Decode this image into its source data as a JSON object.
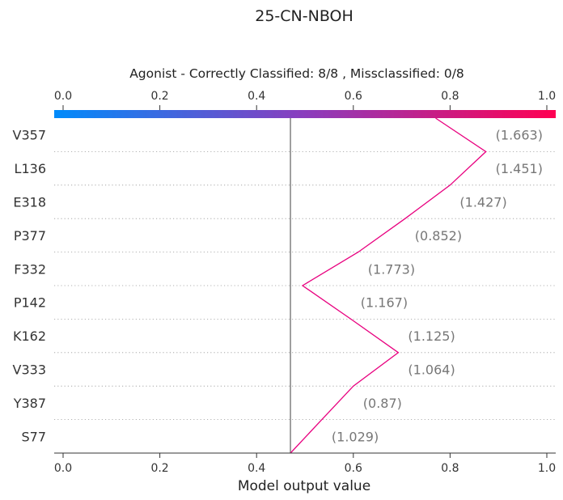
{
  "chart_data": {
    "type": "line",
    "title": "25-CN-NBOH",
    "subtitle": "Agonist - Correctly Classified: 8/8 , Missclassified: 0/8",
    "xlabel": "Model output value",
    "xlim": [
      0.0,
      1.0
    ],
    "x_ticks": [
      "0.0",
      "0.2",
      "0.4",
      "0.6",
      "0.8",
      "1.0"
    ],
    "base_value": 0.47,
    "colorbar": {
      "from": "#008bfb",
      "mid": "#8b3dbd",
      "to": "#ff0052"
    },
    "line_color": "#e8007f",
    "grid_dotted": true,
    "features": [
      {
        "name": "V357",
        "value_text": "(1.663)",
        "out": 0.874
      },
      {
        "name": "L136",
        "value_text": "(1.451)",
        "out": 0.8
      },
      {
        "name": "E318",
        "value_text": "(1.427)",
        "out": 0.707
      },
      {
        "name": "P377",
        "value_text": "(0.852)",
        "out": 0.61
      },
      {
        "name": "F332",
        "value_text": "(1.773)",
        "out": 0.495
      },
      {
        "name": "P142",
        "value_text": "(1.167)",
        "out": 0.595
      },
      {
        "name": "K162",
        "value_text": "(1.125)",
        "out": 0.693
      },
      {
        "name": "V333",
        "value_text": "(1.064)",
        "out": 0.6
      },
      {
        "name": "Y387",
        "value_text": "(0.87)",
        "out": 0.535
      },
      {
        "name": "S77",
        "value_text": "(1.029)",
        "out": 0.47
      }
    ],
    "top_out": 0.77
  }
}
